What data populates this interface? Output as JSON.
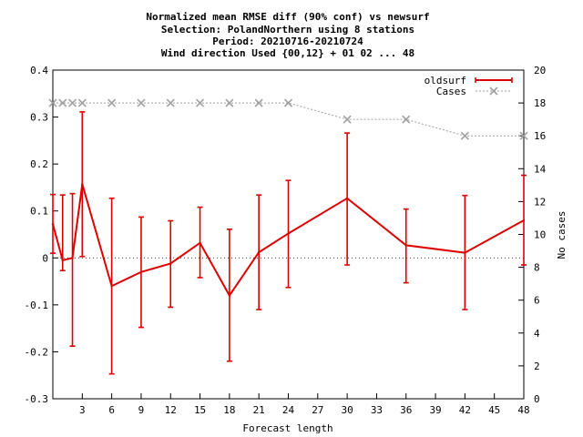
{
  "chart_data": {
    "type": "line",
    "title_lines": [
      "Normalized mean RMSE diff (90% conf) vs newsurf",
      "Selection: PolandNorthern using     8 stations",
      "Period: 20210716-20210724",
      "Wind direction   Used {00,12} + 01 02 ... 48"
    ],
    "xlabel": "Forecast length",
    "ylabel_right": "No cases",
    "xlim": [
      0,
      48
    ],
    "ylim": [
      -0.3,
      0.4
    ],
    "y2lim": [
      0,
      20
    ],
    "x_ticks": [
      3,
      6,
      9,
      12,
      15,
      18,
      21,
      24,
      27,
      30,
      33,
      36,
      39,
      42,
      45,
      48
    ],
    "y_ticks": [
      "0.4",
      "0.3",
      "0.2",
      "0.1",
      "0",
      "-0.1",
      "-0.2",
      "-0.3"
    ],
    "y_tick_values": [
      0.4,
      0.3,
      0.2,
      0.1,
      0,
      -0.1,
      -0.2,
      -0.3
    ],
    "y2_ticks": [
      0,
      2,
      4,
      6,
      8,
      10,
      12,
      14,
      16,
      18,
      20
    ],
    "legend_position": "top-right",
    "series": [
      {
        "name": "oldsurf",
        "color": "#dd0000",
        "x": [
          0,
          1,
          2,
          3,
          6,
          9,
          12,
          15,
          18,
          21,
          24,
          30,
          36,
          42,
          48
        ],
        "y": [
          0.072,
          -0.005,
          0.0,
          0.157,
          -0.06,
          -0.03,
          -0.012,
          0.032,
          -0.08,
          0.012,
          0.052,
          0.127,
          0.027,
          0.011,
          0.08
        ],
        "err_low": [
          0.01,
          -0.027,
          -0.188,
          0.003,
          -0.247,
          -0.148,
          -0.105,
          -0.042,
          -0.22,
          -0.11,
          -0.063,
          -0.015,
          -0.053,
          -0.11,
          -0.015
        ],
        "err_high": [
          0.135,
          0.134,
          0.137,
          0.311,
          0.127,
          0.087,
          0.079,
          0.108,
          0.061,
          0.134,
          0.165,
          0.266,
          0.104,
          0.133,
          0.176
        ]
      },
      {
        "name": "Cases",
        "color": "#a0a0a0",
        "axis": "right",
        "x": [
          0,
          1,
          2,
          3,
          6,
          9,
          12,
          15,
          18,
          21,
          24,
          30,
          36,
          42,
          48
        ],
        "y": [
          18,
          18,
          18,
          18,
          18,
          18,
          18,
          18,
          18,
          18,
          18,
          17,
          17,
          16,
          16
        ]
      }
    ]
  }
}
